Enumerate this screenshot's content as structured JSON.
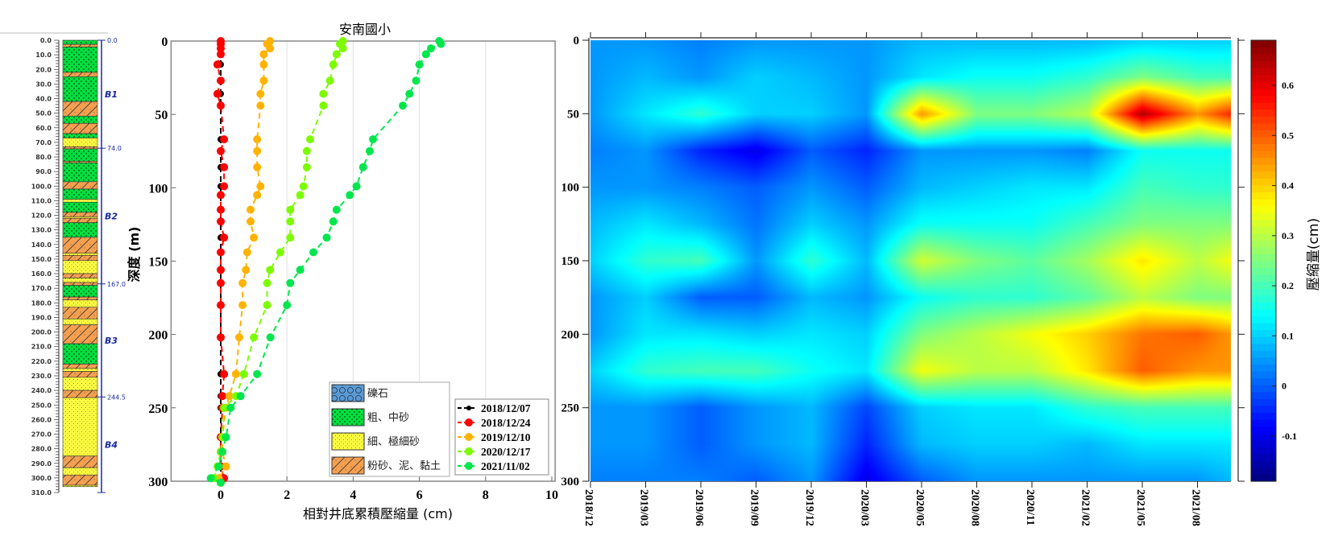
{
  "chart_data": [
    {
      "type": "strat_column",
      "ylabel_ticks": [
        "0.0",
        "10.0",
        "20.0",
        "30.0",
        "40.0",
        "50.0",
        "60.0",
        "70.0",
        "80.0",
        "90.0",
        "100.0",
        "110.0",
        "120.0",
        "130.0",
        "140.0",
        "150.0",
        "160.0",
        "170.0",
        "180.0",
        "190.0",
        "200.0",
        "210.0",
        "220.0",
        "230.0",
        "240.0",
        "250.0",
        "260.0",
        "270.0",
        "280.0",
        "290.0",
        "300.0",
        "310.0"
      ],
      "depth_range": [
        0,
        310
      ],
      "units": [
        {
          "name": "B1",
          "top": 0,
          "bottom": 74,
          "top_label": "0.0"
        },
        {
          "name": "B2",
          "top": 74,
          "bottom": 167,
          "top_label": "74.0"
        },
        {
          "name": "B3",
          "top": 167,
          "bottom": 244.5,
          "top_label": "167.0"
        },
        {
          "name": "B4",
          "top": 244.5,
          "bottom": 310,
          "top_label": "244.5"
        }
      ],
      "layers": [
        [
          0,
          2.8,
          "coarse"
        ],
        [
          2.8,
          4.6,
          "silt"
        ],
        [
          4.6,
          22,
          "coarse"
        ],
        [
          22,
          25,
          "silt"
        ],
        [
          25,
          42,
          "coarse"
        ],
        [
          42,
          52,
          "silt"
        ],
        [
          52,
          57,
          "coarse"
        ],
        [
          57,
          64,
          "silt"
        ],
        [
          64,
          67,
          "coarse"
        ],
        [
          67,
          73,
          "fine"
        ],
        [
          73,
          74.5,
          "silt"
        ],
        [
          74.5,
          83,
          "coarse"
        ],
        [
          83,
          84,
          "silt"
        ],
        [
          84,
          97,
          "coarse"
        ],
        [
          97,
          102,
          "silt"
        ],
        [
          102,
          109,
          "coarse"
        ],
        [
          109,
          111,
          "fine"
        ],
        [
          111,
          118,
          "coarse"
        ],
        [
          118,
          121,
          "silt"
        ],
        [
          121,
          122,
          "fine"
        ],
        [
          122,
          125,
          "silt"
        ],
        [
          125,
          135,
          "coarse"
        ],
        [
          135,
          146,
          "silt"
        ],
        [
          146,
          147.5,
          "fine"
        ],
        [
          147.5,
          151,
          "silt"
        ],
        [
          151,
          160,
          "fine"
        ],
        [
          160,
          163,
          "silt"
        ],
        [
          163,
          166,
          "fine"
        ],
        [
          166,
          168,
          "silt"
        ],
        [
          168,
          176,
          "coarse"
        ],
        [
          176,
          178,
          "silt"
        ],
        [
          178,
          183,
          "fine"
        ],
        [
          183,
          191,
          "silt"
        ],
        [
          191,
          195,
          "fine"
        ],
        [
          195,
          208,
          "silt"
        ],
        [
          208,
          222,
          "coarse"
        ],
        [
          222,
          225,
          "silt"
        ],
        [
          225,
          227,
          "fine"
        ],
        [
          227,
          231,
          "silt"
        ],
        [
          231,
          240,
          "fine"
        ],
        [
          240,
          245,
          "silt"
        ],
        [
          245,
          285,
          "fine"
        ],
        [
          285,
          293,
          "silt"
        ],
        [
          293,
          298,
          "fine"
        ],
        [
          298,
          305,
          "silt"
        ],
        [
          305,
          306,
          "fine"
        ]
      ]
    },
    {
      "type": "line",
      "title": "安南國小",
      "xlabel": "相對井底累積壓縮量 (cm)",
      "ylabel": "深度 (m)",
      "xlim": [
        -1.5,
        10.1
      ],
      "ylim": [
        300,
        0
      ],
      "xticks": [
        0,
        2,
        4,
        6,
        8,
        10
      ],
      "yticks": [
        0,
        50,
        100,
        150,
        200,
        250,
        300
      ],
      "grid": "x-only",
      "depths": [
        0,
        2,
        5,
        9,
        16,
        27,
        36,
        44,
        67,
        75,
        86,
        99,
        105,
        115,
        123,
        134,
        144,
        156,
        165,
        180,
        202,
        227,
        242,
        250,
        270,
        280,
        290,
        298,
        301
      ],
      "series": [
        {
          "name": "2018/12/07",
          "color": "#000000",
          "values": [
            0,
            0,
            0,
            0,
            0,
            0,
            0,
            0,
            0,
            0,
            0,
            0,
            0,
            0,
            0,
            0,
            0,
            0,
            0,
            0,
            0,
            0,
            0,
            0,
            0,
            0,
            0,
            0,
            0
          ]
        },
        {
          "name": "2018/12/24",
          "color": "#ff0000",
          "values": [
            0,
            0,
            0,
            0,
            -0.1,
            0,
            -0.1,
            0,
            0.1,
            0,
            0.1,
            0.1,
            0,
            0,
            0,
            0.1,
            0,
            0,
            0,
            0,
            0,
            0.1,
            0.05,
            0.05,
            0,
            0,
            0,
            0.1,
            0
          ]
        },
        {
          "name": "2019/12/10",
          "color": "#ffb300",
          "values": [
            1.49,
            1.4,
            1.49,
            1.3,
            1.3,
            1.3,
            1.2,
            1.2,
            1.1,
            1.1,
            1.1,
            1.2,
            1.1,
            0.9,
            0.9,
            1.0,
            0.8,
            0.76,
            0.66,
            0.66,
            0.56,
            0.46,
            0.26,
            0.16,
            0.05,
            0.05,
            0.16,
            -0.06,
            0
          ]
        },
        {
          "name": "2020/12/17",
          "color": "#7cfc00",
          "values": [
            3.69,
            3.6,
            3.69,
            3.5,
            3.4,
            3.3,
            3.1,
            3.1,
            2.7,
            2.6,
            2.6,
            2.5,
            2.4,
            2.1,
            2.1,
            2.1,
            1.8,
            1.49,
            1.4,
            1.4,
            1.0,
            0.7,
            0.46,
            0.1,
            0.05,
            0.0,
            -0.1,
            -0.2,
            0
          ]
        },
        {
          "name": "2021/11/02",
          "color": "#00e64d",
          "values": [
            6.6,
            6.65,
            6.35,
            6.2,
            6.0,
            5.9,
            5.7,
            5.5,
            4.6,
            4.5,
            4.3,
            4.1,
            3.9,
            3.5,
            3.4,
            3.2,
            2.8,
            2.4,
            2.1,
            2.0,
            1.5,
            1.1,
            0.6,
            0.3,
            0.16,
            0.05,
            -0.06,
            -0.3,
            0
          ]
        }
      ],
      "lithology_legend": [
        {
          "key": "gravel",
          "label": "礫石",
          "color": "#5b9bd5"
        },
        {
          "key": "coarse",
          "label": "粗、中砂",
          "color": "#00e040"
        },
        {
          "key": "fine",
          "label": "細、極細砂",
          "color": "#ffff60"
        },
        {
          "key": "silt",
          "label": "粉砂、泥、黏土",
          "color": "#f5a050"
        }
      ]
    },
    {
      "type": "heatmap",
      "xlabels": [
        "2018/12",
        "2019/03",
        "2019/06",
        "2019/09",
        "2019/12",
        "2020/03",
        "2020/05",
        "2020/08",
        "2020/11",
        "2021/02",
        "2021/05",
        "2021/08"
      ],
      "x_index": [
        0,
        1,
        2,
        3,
        4,
        5,
        6,
        7,
        8,
        9,
        10,
        11,
        11.6
      ],
      "xlim_index": [
        0,
        11.6
      ],
      "depths": [
        0,
        25,
        50,
        75,
        100,
        125,
        150,
        175,
        200,
        225,
        250,
        275,
        300
      ],
      "yticks": [
        0,
        50,
        100,
        150,
        200,
        250,
        300
      ],
      "z": [
        [
          0.05,
          0.05,
          0.03,
          0.05,
          0.05,
          0.05,
          0.08,
          0.08,
          0.08,
          0.08,
          0.1,
          0.1,
          0.1
        ],
        [
          0.05,
          0.08,
          0.05,
          0.1,
          0.08,
          0.05,
          0.12,
          0.15,
          0.15,
          0.18,
          0.25,
          0.2,
          0.2
        ],
        [
          0.05,
          0.12,
          0.18,
          0.1,
          0.1,
          0.05,
          0.45,
          0.25,
          0.25,
          0.3,
          0.65,
          0.45,
          0.55
        ],
        [
          0.03,
          0.05,
          -0.05,
          -0.1,
          0.0,
          -0.05,
          0.05,
          0.05,
          0.05,
          0.03,
          0.15,
          0.15,
          0.15
        ],
        [
          0.05,
          0.05,
          0.03,
          0.0,
          0.05,
          0.0,
          0.08,
          0.1,
          0.12,
          0.12,
          0.2,
          0.18,
          0.18
        ],
        [
          0.08,
          0.12,
          0.08,
          0.02,
          0.1,
          0.05,
          0.15,
          0.15,
          0.15,
          0.2,
          0.25,
          0.25,
          0.25
        ],
        [
          0.1,
          0.18,
          0.2,
          0.05,
          0.18,
          0.08,
          0.32,
          0.25,
          0.22,
          0.28,
          0.38,
          0.3,
          0.35
        ],
        [
          0.05,
          0.1,
          0.0,
          0.0,
          0.08,
          0.05,
          0.15,
          0.18,
          0.18,
          0.22,
          0.3,
          0.25,
          0.25
        ],
        [
          0.05,
          0.12,
          0.12,
          0.1,
          0.12,
          0.1,
          0.25,
          0.3,
          0.35,
          0.4,
          0.48,
          0.5,
          0.45
        ],
        [
          0.1,
          0.18,
          0.2,
          0.2,
          0.15,
          0.12,
          0.35,
          0.3,
          0.3,
          0.38,
          0.5,
          0.45,
          0.45
        ],
        [
          0.05,
          0.05,
          0.0,
          0.05,
          0.08,
          -0.02,
          0.1,
          0.12,
          0.12,
          0.18,
          0.2,
          0.2,
          0.2
        ],
        [
          0.05,
          0.05,
          0.0,
          0.05,
          0.08,
          -0.05,
          0.08,
          0.1,
          0.1,
          0.08,
          0.12,
          0.12,
          0.12
        ],
        [
          0.03,
          0.03,
          0.03,
          0.0,
          0.05,
          -0.1,
          0.0,
          0.05,
          0.05,
          0.05,
          0.05,
          0.05,
          0.08
        ]
      ],
      "colormap": "jet",
      "clim": [
        -0.19,
        0.69
      ],
      "colorbar_label": "壓縮量(cm)",
      "colorbar_ticks": [
        -0.1,
        0,
        0.1,
        0.2,
        0.3,
        0.4,
        0.5,
        0.6
      ],
      "colorbar_tick_labels": [
        "-0.1",
        "0",
        "0.1",
        "0.2",
        "0.3",
        "0.4",
        "0.5",
        "0.6"
      ]
    }
  ]
}
